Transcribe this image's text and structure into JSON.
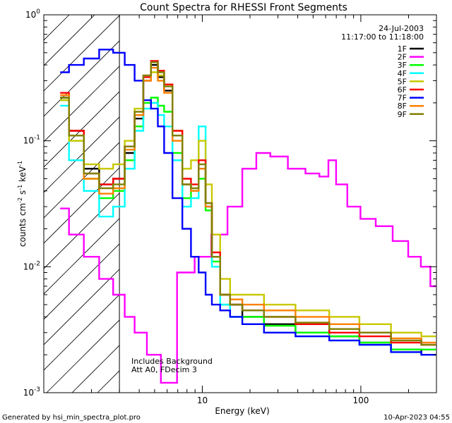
{
  "chart_data": {
    "type": "line",
    "title": "Count Spectra for RHESSI Front Segments",
    "xlabel": "Energy (keV)",
    "ylabel_main": "counts cm",
    "ylabel_sup1": "-2",
    "ylabel_mid1": " s",
    "ylabel_sup2": "-1",
    "ylabel_mid2": " keV",
    "ylabel_sup3": "-1",
    "xscale": "log",
    "yscale": "log",
    "xlim": [
      1,
      300
    ],
    "ylim": [
      0.001,
      1
    ],
    "x_ticks": [
      {
        "value": 10,
        "label": "10"
      },
      {
        "value": 100,
        "label": "100"
      }
    ],
    "y_ticks": [
      {
        "value": 1,
        "base": "10",
        "exp": "0"
      },
      {
        "value": 0.1,
        "base": "10",
        "exp": "-1"
      },
      {
        "value": 0.01,
        "base": "10",
        "exp": "-2"
      },
      {
        "value": 0.001,
        "base": "10",
        "exp": "-3"
      }
    ],
    "date": "24-Jul-2003",
    "time_range": "11:17:00 to 11:18:00",
    "hatched_region_end_keV": 3,
    "annotations": [
      "Includes Background",
      "Att A0, FDecim 3"
    ],
    "series": [
      {
        "name": "1F",
        "color": "#000000",
        "points": [
          [
            1.3,
            0.22
          ],
          [
            1.6,
            0.12
          ],
          [
            2,
            0.06
          ],
          [
            2.5,
            0.045
          ],
          [
            3,
            0.05
          ],
          [
            3.5,
            0.08
          ],
          [
            4,
            0.15
          ],
          [
            4.5,
            0.3
          ],
          [
            5,
            0.4
          ],
          [
            5.5,
            0.32
          ],
          [
            6,
            0.25
          ],
          [
            7,
            0.11
          ],
          [
            8,
            0.045
          ],
          [
            9,
            0.04
          ],
          [
            10,
            0.06
          ],
          [
            11,
            0.03
          ],
          [
            12,
            0.012
          ],
          [
            14,
            0.006
          ],
          [
            16,
            0.005
          ],
          [
            20,
            0.004
          ],
          [
            30,
            0.0035
          ],
          [
            50,
            0.003
          ],
          [
            80,
            0.0028
          ],
          [
            120,
            0.0025
          ],
          [
            200,
            0.0022
          ],
          [
            290,
            0.002
          ]
        ]
      },
      {
        "name": "2F",
        "color": "#ff00ff",
        "points": [
          [
            1.3,
            0.029
          ],
          [
            1.6,
            0.018
          ],
          [
            2,
            0.012
          ],
          [
            2.5,
            0.008
          ],
          [
            3,
            0.006
          ],
          [
            3.5,
            0.004
          ],
          [
            4,
            0.003
          ],
          [
            5,
            0.002
          ],
          [
            6,
            0.0012
          ],
          [
            8,
            0.009
          ],
          [
            10,
            0.012
          ],
          [
            13,
            0.018
          ],
          [
            16,
            0.03
          ],
          [
            20,
            0.06
          ],
          [
            24,
            0.08
          ],
          [
            30,
            0.075
          ],
          [
            40,
            0.06
          ],
          [
            50,
            0.055
          ],
          [
            60,
            0.052
          ],
          [
            65,
            0.07
          ],
          [
            75,
            0.045
          ],
          [
            90,
            0.03
          ],
          [
            110,
            0.024
          ],
          [
            140,
            0.021
          ],
          [
            180,
            0.016
          ],
          [
            220,
            0.012
          ],
          [
            260,
            0.01
          ],
          [
            290,
            0.007
          ]
        ]
      },
      {
        "name": "3F",
        "color": "#00ff00",
        "points": [
          [
            1.3,
            0.21
          ],
          [
            1.6,
            0.1
          ],
          [
            2,
            0.05
          ],
          [
            2.5,
            0.035
          ],
          [
            3,
            0.04
          ],
          [
            3.5,
            0.07
          ],
          [
            4,
            0.13
          ],
          [
            4.5,
            0.2
          ],
          [
            5,
            0.22
          ],
          [
            5.5,
            0.19
          ],
          [
            6,
            0.17
          ],
          [
            7,
            0.08
          ],
          [
            8,
            0.035
          ],
          [
            9,
            0.04
          ],
          [
            10,
            0.05
          ],
          [
            11,
            0.028
          ],
          [
            12,
            0.011
          ],
          [
            14,
            0.005
          ],
          [
            16,
            0.004
          ],
          [
            20,
            0.004
          ],
          [
            30,
            0.0034
          ],
          [
            50,
            0.003
          ],
          [
            80,
            0.0028
          ],
          [
            120,
            0.0025
          ],
          [
            200,
            0.0022
          ],
          [
            290,
            0.0022
          ]
        ]
      },
      {
        "name": "4F",
        "color": "#00ffff",
        "points": [
          [
            1.3,
            0.19
          ],
          [
            1.6,
            0.07
          ],
          [
            2,
            0.04
          ],
          [
            2.5,
            0.025
          ],
          [
            3,
            0.03
          ],
          [
            3.5,
            0.06
          ],
          [
            4,
            0.12
          ],
          [
            4.5,
            0.18
          ],
          [
            5,
            0.2
          ],
          [
            5.5,
            0.16
          ],
          [
            6,
            0.13
          ],
          [
            7,
            0.07
          ],
          [
            8,
            0.03
          ],
          [
            9,
            0.035
          ],
          [
            10,
            0.13
          ],
          [
            11,
            0.03
          ],
          [
            12,
            0.01
          ],
          [
            14,
            0.005
          ],
          [
            16,
            0.004
          ],
          [
            20,
            0.0035
          ],
          [
            30,
            0.003
          ],
          [
            50,
            0.0028
          ],
          [
            80,
            0.0026
          ],
          [
            120,
            0.0024
          ],
          [
            200,
            0.0021
          ],
          [
            290,
            0.002
          ]
        ]
      },
      {
        "name": "5F",
        "color": "#c8c800",
        "points": [
          [
            1.3,
            0.21
          ],
          [
            1.6,
            0.1
          ],
          [
            2,
            0.065
          ],
          [
            2.5,
            0.06
          ],
          [
            3,
            0.065
          ],
          [
            3.5,
            0.1
          ],
          [
            4,
            0.18
          ],
          [
            4.5,
            0.3
          ],
          [
            5,
            0.35
          ],
          [
            5.5,
            0.33
          ],
          [
            6,
            0.28
          ],
          [
            7,
            0.12
          ],
          [
            8,
            0.06
          ],
          [
            9,
            0.07
          ],
          [
            10,
            0.1
          ],
          [
            11,
            0.045
          ],
          [
            12,
            0.018
          ],
          [
            14,
            0.008
          ],
          [
            16,
            0.006
          ],
          [
            20,
            0.006
          ],
          [
            30,
            0.005
          ],
          [
            50,
            0.0045
          ],
          [
            80,
            0.004
          ],
          [
            120,
            0.0035
          ],
          [
            200,
            0.003
          ],
          [
            290,
            0.0028
          ]
        ]
      },
      {
        "name": "6F",
        "color": "#ff0000",
        "points": [
          [
            1.3,
            0.24
          ],
          [
            1.6,
            0.12
          ],
          [
            2,
            0.055
          ],
          [
            2.5,
            0.045
          ],
          [
            3,
            0.05
          ],
          [
            3.5,
            0.09
          ],
          [
            4,
            0.16
          ],
          [
            4.5,
            0.32
          ],
          [
            5,
            0.43
          ],
          [
            5.5,
            0.36
          ],
          [
            6,
            0.28
          ],
          [
            7,
            0.12
          ],
          [
            8,
            0.05
          ],
          [
            9,
            0.045
          ],
          [
            10,
            0.07
          ],
          [
            11,
            0.032
          ],
          [
            12,
            0.013
          ],
          [
            14,
            0.006
          ],
          [
            16,
            0.005
          ],
          [
            20,
            0.0045
          ],
          [
            30,
            0.004
          ],
          [
            50,
            0.0035
          ],
          [
            80,
            0.003
          ],
          [
            120,
            0.0028
          ],
          [
            200,
            0.0025
          ],
          [
            290,
            0.0024
          ]
        ]
      },
      {
        "name": "7F",
        "color": "#0000ff",
        "points": [
          [
            1.3,
            0.35
          ],
          [
            1.6,
            0.4
          ],
          [
            2,
            0.45
          ],
          [
            2.5,
            0.53
          ],
          [
            3,
            0.5
          ],
          [
            3.5,
            0.4
          ],
          [
            4,
            0.3
          ],
          [
            4.5,
            0.21
          ],
          [
            5,
            0.18
          ],
          [
            5.5,
            0.13
          ],
          [
            6,
            0.08
          ],
          [
            7,
            0.035
          ],
          [
            8,
            0.02
          ],
          [
            9,
            0.012
          ],
          [
            10,
            0.009
          ],
          [
            11,
            0.006
          ],
          [
            12,
            0.005
          ],
          [
            14,
            0.0045
          ],
          [
            16,
            0.004
          ],
          [
            20,
            0.0035
          ],
          [
            30,
            0.003
          ],
          [
            50,
            0.0028
          ],
          [
            80,
            0.0026
          ],
          [
            120,
            0.0024
          ],
          [
            200,
            0.0021
          ],
          [
            290,
            0.002
          ]
        ]
      },
      {
        "name": "8F",
        "color": "#ff8000",
        "points": [
          [
            1.3,
            0.23
          ],
          [
            1.6,
            0.11
          ],
          [
            2,
            0.05
          ],
          [
            2.5,
            0.038
          ],
          [
            3,
            0.042
          ],
          [
            3.5,
            0.085
          ],
          [
            4,
            0.16
          ],
          [
            4.5,
            0.3
          ],
          [
            5,
            0.38
          ],
          [
            5.5,
            0.3
          ],
          [
            6,
            0.24
          ],
          [
            7,
            0.1
          ],
          [
            8,
            0.045
          ],
          [
            9,
            0.04
          ],
          [
            10,
            0.06
          ],
          [
            11,
            0.03
          ],
          [
            12,
            0.012
          ],
          [
            14,
            0.006
          ],
          [
            16,
            0.0055
          ],
          [
            20,
            0.005
          ],
          [
            30,
            0.0045
          ],
          [
            50,
            0.004
          ],
          [
            80,
            0.0035
          ],
          [
            120,
            0.003
          ],
          [
            200,
            0.0027
          ],
          [
            290,
            0.0025
          ]
        ]
      },
      {
        "name": "9F",
        "color": "#808000",
        "points": [
          [
            1.3,
            0.22
          ],
          [
            1.6,
            0.11
          ],
          [
            2,
            0.055
          ],
          [
            2.5,
            0.042
          ],
          [
            3,
            0.045
          ],
          [
            3.5,
            0.09
          ],
          [
            4,
            0.17
          ],
          [
            4.5,
            0.33
          ],
          [
            5,
            0.42
          ],
          [
            5.5,
            0.35
          ],
          [
            6,
            0.27
          ],
          [
            7,
            0.11
          ],
          [
            8,
            0.045
          ],
          [
            9,
            0.042
          ],
          [
            10,
            0.065
          ],
          [
            11,
            0.032
          ],
          [
            12,
            0.012
          ],
          [
            14,
            0.006
          ],
          [
            16,
            0.005
          ],
          [
            20,
            0.0045
          ],
          [
            30,
            0.004
          ],
          [
            50,
            0.0036
          ],
          [
            80,
            0.0032
          ],
          [
            120,
            0.003
          ],
          [
            200,
            0.0026
          ],
          [
            290,
            0.0024
          ]
        ]
      }
    ]
  },
  "footer": {
    "generated_by": "Generated by hsi_min_spectra_plot.pro",
    "timestamp": "10-Apr-2023 04:55"
  }
}
